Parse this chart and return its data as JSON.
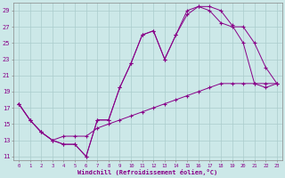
{
  "bg_color": "#cce8e8",
  "grid_color": "#aacccc",
  "line_color": "#880088",
  "xlabel": "Windchill (Refroidissement éolien,°C)",
  "xlim": [
    -0.5,
    23.5
  ],
  "ylim": [
    10.5,
    30.0
  ],
  "xticks": [
    0,
    1,
    2,
    3,
    4,
    5,
    6,
    7,
    8,
    9,
    10,
    11,
    12,
    13,
    14,
    15,
    16,
    17,
    18,
    19,
    20,
    21,
    22,
    23
  ],
  "yticks": [
    11,
    13,
    15,
    17,
    19,
    21,
    23,
    25,
    27,
    29
  ],
  "curve1": {
    "x": [
      0,
      1,
      2,
      3,
      4,
      5,
      6,
      7,
      8,
      9,
      10,
      11,
      12,
      13,
      14,
      15,
      16,
      17,
      18,
      19,
      20,
      21,
      22,
      23
    ],
    "y": [
      17.5,
      15.5,
      14.0,
      13.0,
      12.5,
      12.5,
      11.0,
      15.5,
      15.5,
      19.5,
      22.5,
      26.0,
      26.5,
      23.0,
      26.0,
      29.0,
      29.5,
      29.5,
      29.0,
      27.2,
      25.0,
      20.0,
      19.5,
      20.0
    ]
  },
  "curve2": {
    "x": [
      0,
      1,
      2,
      3,
      4,
      5,
      6,
      7,
      8,
      9,
      10,
      11,
      12,
      13,
      14,
      15,
      16,
      17,
      18,
      19,
      20,
      21,
      22,
      23
    ],
    "y": [
      17.5,
      15.5,
      14.0,
      13.0,
      12.5,
      12.5,
      11.0,
      15.5,
      15.5,
      19.5,
      22.5,
      26.0,
      26.5,
      23.0,
      26.0,
      28.5,
      29.5,
      29.0,
      27.5,
      27.0,
      27.0,
      25.0,
      22.0,
      20.0
    ]
  },
  "curve3": {
    "x": [
      0,
      1,
      2,
      3,
      4,
      5,
      6,
      7,
      8,
      9,
      10,
      11,
      12,
      13,
      14,
      15,
      16,
      17,
      18,
      19,
      20,
      21,
      22,
      23
    ],
    "y": [
      17.5,
      15.5,
      14.0,
      13.0,
      13.5,
      13.5,
      13.5,
      14.5,
      15.0,
      15.5,
      16.0,
      16.5,
      17.0,
      17.5,
      18.0,
      18.5,
      19.0,
      19.5,
      20.0,
      20.0,
      20.0,
      20.0,
      20.0,
      20.0
    ]
  }
}
